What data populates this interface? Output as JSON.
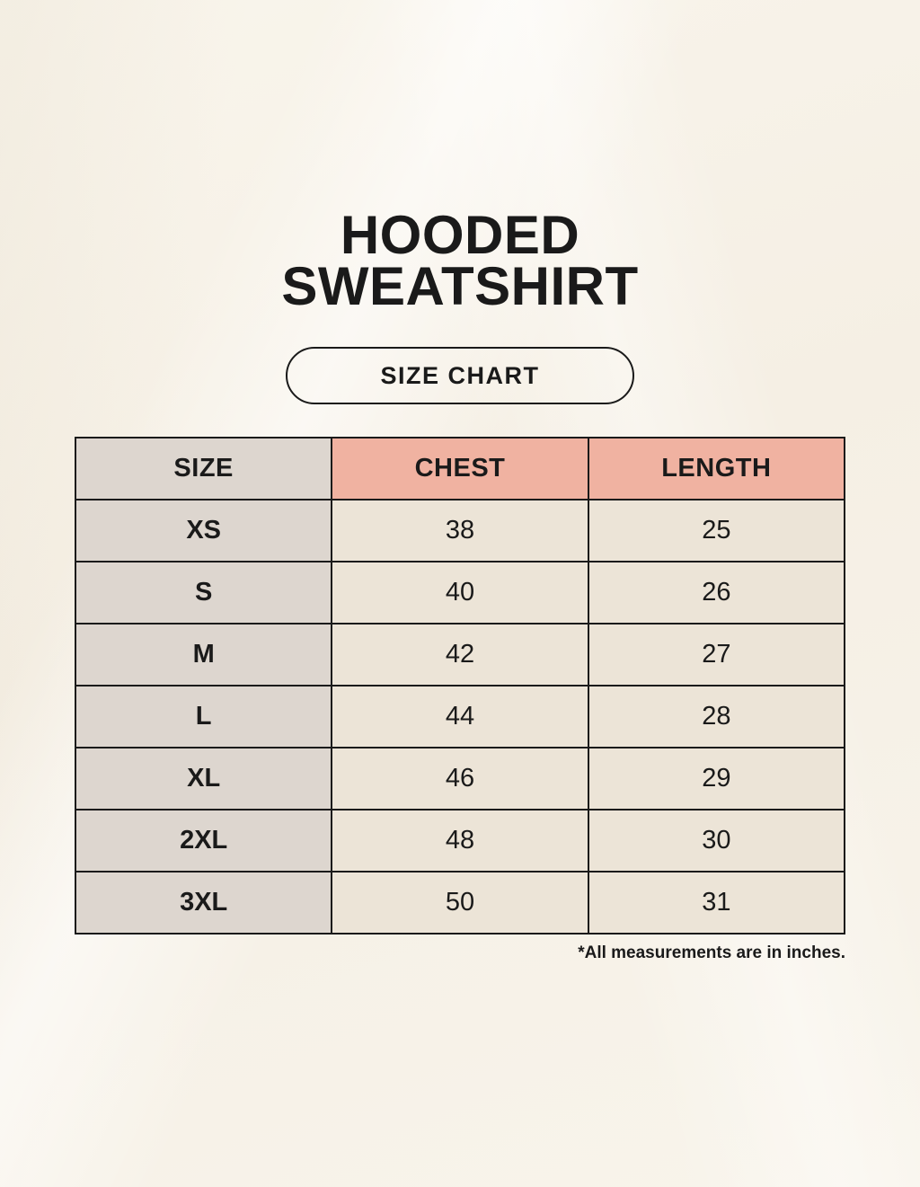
{
  "page": {
    "title_line1": "HOODED",
    "title_line2": "SWEATSHIRT",
    "size_chart_button": "SIZE CHART",
    "footnote": "*All measurements are in inches."
  },
  "table": {
    "headers": [
      "SIZE",
      "CHEST",
      "LENGTH"
    ],
    "rows": [
      [
        "XS",
        "38",
        "25"
      ],
      [
        "S",
        "40",
        "26"
      ],
      [
        "M",
        "42",
        "27"
      ],
      [
        "L",
        "44",
        "28"
      ],
      [
        "XL",
        "46",
        "29"
      ],
      [
        "2XL",
        "48",
        "30"
      ],
      [
        "3XL",
        "50",
        "31"
      ]
    ]
  },
  "chart_data": {
    "type": "table",
    "title": "HOODED SWEATSHIRT SIZE CHART",
    "columns": [
      "SIZE",
      "CHEST",
      "LENGTH"
    ],
    "rows": [
      {
        "size": "XS",
        "chest": 38,
        "length": 25
      },
      {
        "size": "S",
        "chest": 40,
        "length": 26
      },
      {
        "size": "M",
        "chest": 42,
        "length": 27
      },
      {
        "size": "L",
        "chest": 44,
        "length": 28
      },
      {
        "size": "XL",
        "chest": 46,
        "length": 29
      },
      {
        "size": "2XL",
        "chest": 48,
        "length": 30
      },
      {
        "size": "3XL",
        "chest": 50,
        "length": 31
      }
    ],
    "units": "inches",
    "footnote": "*All measurements are in inches."
  },
  "colors": {
    "background": "#f7f2e8",
    "header_accent": "#f0b2a1",
    "size_column_bg": "#ddd6cf",
    "value_cell_bg": "#ece4d7",
    "border": "#1a1a1a",
    "text": "#1a1a1a"
  }
}
